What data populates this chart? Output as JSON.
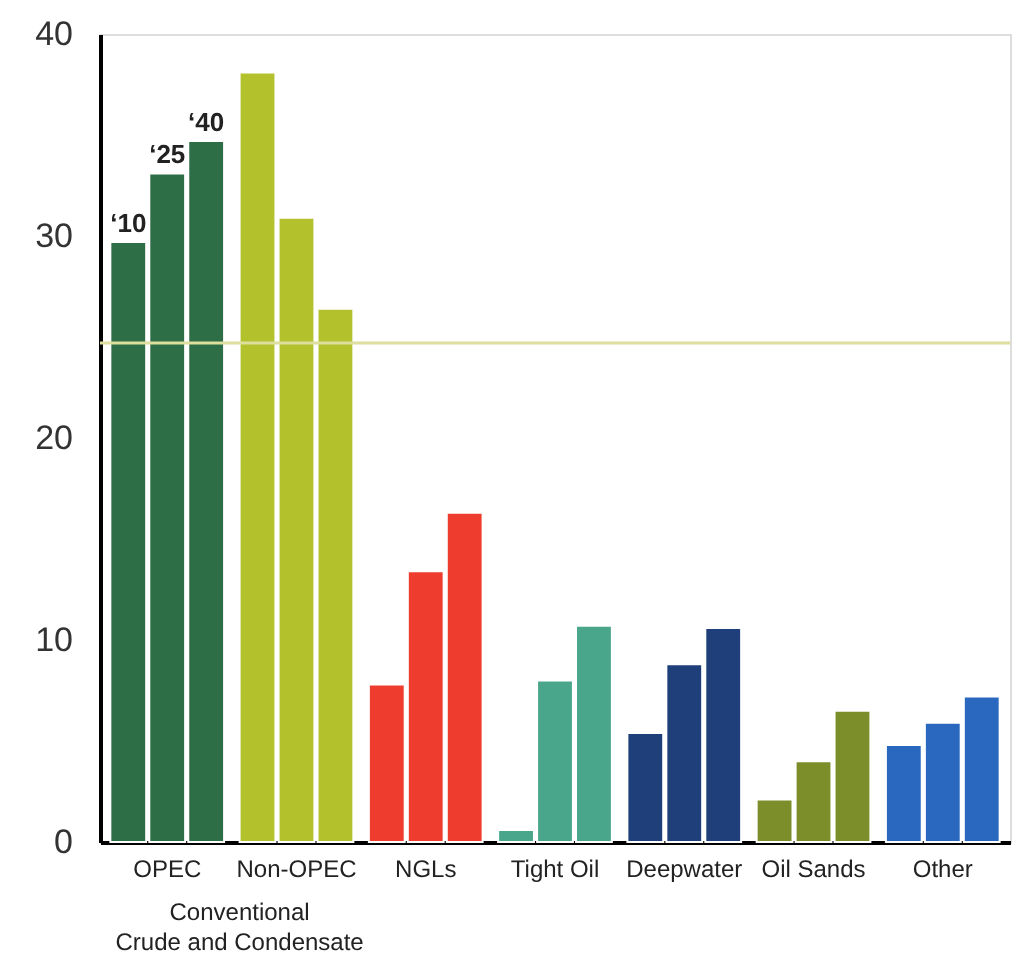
{
  "chart_data": {
    "type": "bar",
    "categories": [
      "OPEC",
      "Non-OPEC",
      "NGLs",
      "Tight Oil",
      "Deepwater",
      "Oil Sands",
      "Other"
    ],
    "series": [
      {
        "name": "‘10",
        "colors": [
          "#2e6e47",
          "#b3c22c",
          "#ee3d2f",
          "#4aa68a",
          "#1f3f7a",
          "#7c8e2a",
          "#2a68bf"
        ],
        "values": [
          29.7,
          38.1,
          7.8,
          0.6,
          5.4,
          2.1,
          4.8
        ]
      },
      {
        "name": "‘25",
        "colors": [
          "#2e6e47",
          "#b3c22c",
          "#ee3d2f",
          "#4aa68a",
          "#1f3f7a",
          "#7c8e2a",
          "#2a68bf"
        ],
        "values": [
          33.1,
          30.9,
          13.4,
          8.0,
          8.8,
          4.0,
          5.9
        ]
      },
      {
        "name": "‘40",
        "colors": [
          "#2e6e47",
          "#b3c22c",
          "#ee3d2f",
          "#4aa68a",
          "#1f3f7a",
          "#7c8e2a",
          "#2a68bf"
        ],
        "values": [
          34.7,
          26.4,
          16.3,
          10.7,
          10.6,
          6.5,
          7.2
        ]
      }
    ],
    "ylim": [
      0,
      40
    ],
    "yticks": [
      0,
      10,
      20,
      30,
      40
    ],
    "ref_lines": [
      {
        "axis": "y",
        "value": 24.7,
        "color": "#dede9e"
      }
    ],
    "annotations": [
      "Conventional Crude and Condensate"
    ],
    "grid": false
  }
}
